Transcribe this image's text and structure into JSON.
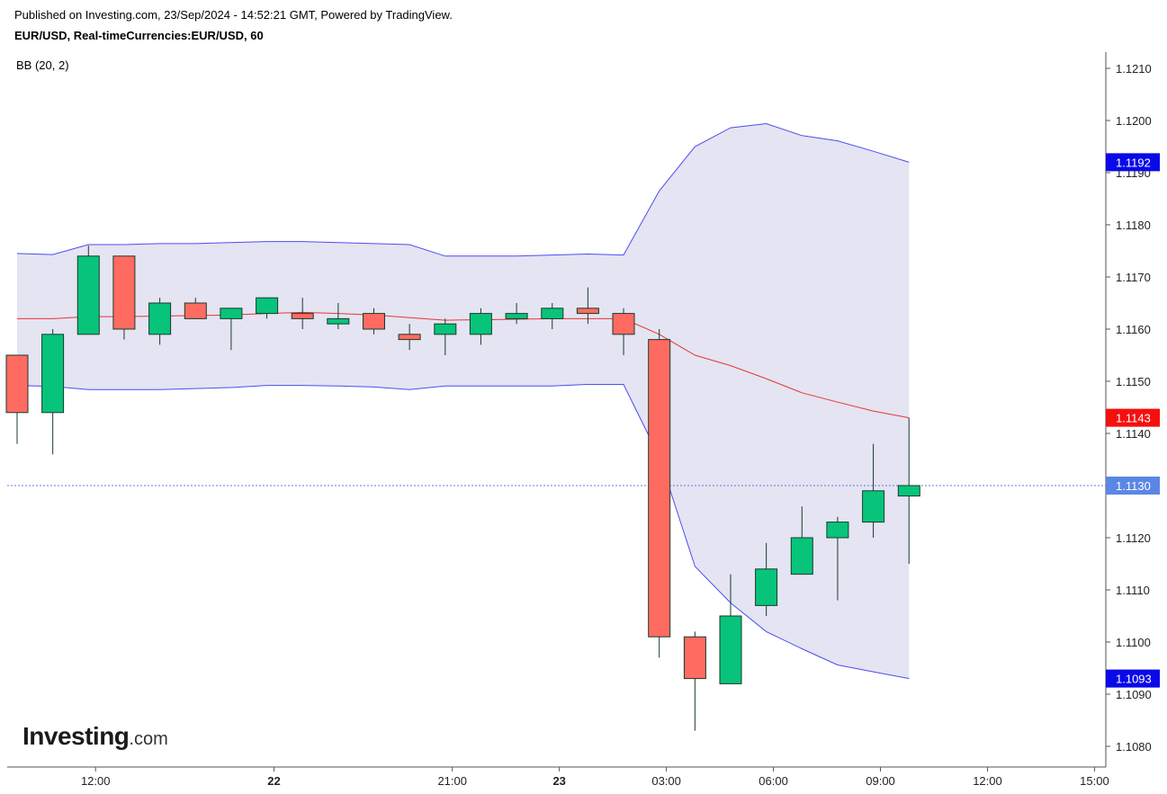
{
  "header": {
    "published": "Published on Investing.com, 23/Sep/2024 - 14:52:21 GMT, Powered by TradingView.",
    "symbol_line": "EUR/USD, Real-timeCurrencies:EUR/USD, 60"
  },
  "indicator": {
    "label": "BB (20, 2)"
  },
  "logo": {
    "word": "Investing",
    "tld": ".com"
  },
  "colors": {
    "up": "#08c47a",
    "down": "#ff6b61",
    "wick": "#1a3a2e",
    "band_line": "#4d4df0",
    "band_fill": "#e4e4f2",
    "basis": "#e83535",
    "last_price_line": "#5a7fe0",
    "tag_blue": "#0a0ae8",
    "tag_red": "#f50f0f",
    "tag_last": "#5b86e5"
  },
  "chart_data": {
    "type": "candlestick",
    "title": "EUR/USD, Real-timeCurrencies:EUR/USD, 60",
    "ylim": [
      1.10735,
      1.12135
    ],
    "y_ticks": [
      1.108,
      1.109,
      1.11,
      1.111,
      1.112,
      1.113,
      1.114,
      1.115,
      1.116,
      1.117,
      1.118,
      1.119,
      1.12,
      1.121
    ],
    "y_tick_labels": [
      "1.1080",
      "1.1090",
      "1.1100",
      "1.1110",
      "1.1120",
      "1.1130",
      "1.1140",
      "1.1150",
      "1.1160",
      "1.1170",
      "1.1180",
      "1.1190",
      "1.1200",
      "1.1210"
    ],
    "x_ticks": [
      {
        "slot": 2.2,
        "label": "12:00",
        "bold": false
      },
      {
        "slot": 7.2,
        "label": "22",
        "bold": true
      },
      {
        "slot": 12.2,
        "label": "21:00",
        "bold": false
      },
      {
        "slot": 15.2,
        "label": "23",
        "bold": true
      },
      {
        "slot": 18.2,
        "label": "03:00",
        "bold": false
      },
      {
        "slot": 21.2,
        "label": "06:00",
        "bold": false
      },
      {
        "slot": 24.2,
        "label": "09:00",
        "bold": false
      },
      {
        "slot": 27.2,
        "label": "12:00",
        "bold": false
      },
      {
        "slot": 30.2,
        "label": "15:00",
        "bold": false
      }
    ],
    "candles": [
      {
        "o": 1.1155,
        "h": 1.1155,
        "l": 1.1138,
        "c": 1.1144
      },
      {
        "o": 1.1144,
        "h": 1.116,
        "l": 1.1136,
        "c": 1.1159
      },
      {
        "o": 1.1159,
        "h": 1.1176,
        "l": 1.1159,
        "c": 1.1174
      },
      {
        "o": 1.1174,
        "h": 1.1174,
        "l": 1.1158,
        "c": 1.116
      },
      {
        "o": 1.1159,
        "h": 1.1166,
        "l": 1.1157,
        "c": 1.1165
      },
      {
        "o": 1.1165,
        "h": 1.1166,
        "l": 1.1162,
        "c": 1.1162
      },
      {
        "o": 1.1162,
        "h": 1.1164,
        "l": 1.1156,
        "c": 1.1164
      },
      {
        "o": 1.1163,
        "h": 1.1166,
        "l": 1.1162,
        "c": 1.1166
      },
      {
        "o": 1.1163,
        "h": 1.1166,
        "l": 1.116,
        "c": 1.1162
      },
      {
        "o": 1.1161,
        "h": 1.1165,
        "l": 1.116,
        "c": 1.1162
      },
      {
        "o": 1.1163,
        "h": 1.1164,
        "l": 1.1159,
        "c": 1.116
      },
      {
        "o": 1.1159,
        "h": 1.1161,
        "l": 1.1156,
        "c": 1.1158
      },
      {
        "o": 1.1159,
        "h": 1.1162,
        "l": 1.1155,
        "c": 1.1161
      },
      {
        "o": 1.1159,
        "h": 1.1164,
        "l": 1.1157,
        "c": 1.1163
      },
      {
        "o": 1.1162,
        "h": 1.1165,
        "l": 1.1161,
        "c": 1.1163
      },
      {
        "o": 1.1162,
        "h": 1.1165,
        "l": 1.116,
        "c": 1.1164
      },
      {
        "o": 1.1164,
        "h": 1.1168,
        "l": 1.1161,
        "c": 1.1163
      },
      {
        "o": 1.1163,
        "h": 1.1164,
        "l": 1.1155,
        "c": 1.1159
      },
      {
        "o": 1.1158,
        "h": 1.116,
        "l": 1.1097,
        "c": 1.1101
      },
      {
        "o": 1.1101,
        "h": 1.1102,
        "l": 1.1083,
        "c": 1.1093
      },
      {
        "o": 1.1092,
        "h": 1.1113,
        "l": 1.1092,
        "c": 1.1105
      },
      {
        "o": 1.1107,
        "h": 1.1119,
        "l": 1.1105,
        "c": 1.1114
      },
      {
        "o": 1.1113,
        "h": 1.1126,
        "l": 1.1113,
        "c": 1.112
      },
      {
        "o": 1.112,
        "h": 1.1124,
        "l": 1.1108,
        "c": 1.1123
      },
      {
        "o": 1.1123,
        "h": 1.1138,
        "l": 1.112,
        "c": 1.1129
      },
      {
        "o": 1.1128,
        "h": 1.1143,
        "l": 1.1115,
        "c": 1.113
      }
    ],
    "bollinger": {
      "period": 20,
      "stddev": 2,
      "upper": [
        {
          "slot": 0,
          "v": 1.11745
        },
        {
          "slot": 1,
          "v": 1.11743
        },
        {
          "slot": 2,
          "v": 1.11762
        },
        {
          "slot": 3,
          "v": 1.11762
        },
        {
          "slot": 4,
          "v": 1.11764
        },
        {
          "slot": 5,
          "v": 1.11764
        },
        {
          "slot": 6,
          "v": 1.11766
        },
        {
          "slot": 7,
          "v": 1.11768
        },
        {
          "slot": 8,
          "v": 1.11768
        },
        {
          "slot": 9,
          "v": 1.11766
        },
        {
          "slot": 10,
          "v": 1.11764
        },
        {
          "slot": 11,
          "v": 1.11762
        },
        {
          "slot": 12,
          "v": 1.1174
        },
        {
          "slot": 13,
          "v": 1.1174
        },
        {
          "slot": 14,
          "v": 1.1174
        },
        {
          "slot": 15,
          "v": 1.11742
        },
        {
          "slot": 16,
          "v": 1.11744
        },
        {
          "slot": 17,
          "v": 1.11742
        },
        {
          "slot": 18,
          "v": 1.11865
        },
        {
          "slot": 19,
          "v": 1.1195
        },
        {
          "slot": 20,
          "v": 1.11986
        },
        {
          "slot": 21,
          "v": 1.11994
        },
        {
          "slot": 22,
          "v": 1.11971
        },
        {
          "slot": 23,
          "v": 1.11961
        },
        {
          "slot": 24,
          "v": 1.11941
        },
        {
          "slot": 25,
          "v": 1.1192
        }
      ],
      "basis": [
        {
          "slot": 0,
          "v": 1.1162
        },
        {
          "slot": 1,
          "v": 1.1162
        },
        {
          "slot": 2,
          "v": 1.11624
        },
        {
          "slot": 3,
          "v": 1.11624
        },
        {
          "slot": 4,
          "v": 1.11625
        },
        {
          "slot": 5,
          "v": 1.11626
        },
        {
          "slot": 6,
          "v": 1.11627
        },
        {
          "slot": 7,
          "v": 1.1163
        },
        {
          "slot": 8,
          "v": 1.11632
        },
        {
          "slot": 9,
          "v": 1.1163
        },
        {
          "slot": 10,
          "v": 1.11627
        },
        {
          "slot": 11,
          "v": 1.11622
        },
        {
          "slot": 12,
          "v": 1.11617
        },
        {
          "slot": 13,
          "v": 1.11618
        },
        {
          "slot": 14,
          "v": 1.11619
        },
        {
          "slot": 15,
          "v": 1.1162
        },
        {
          "slot": 16,
          "v": 1.1162
        },
        {
          "slot": 17,
          "v": 1.1162
        },
        {
          "slot": 18,
          "v": 1.1159
        },
        {
          "slot": 19,
          "v": 1.1155
        },
        {
          "slot": 20,
          "v": 1.1153
        },
        {
          "slot": 21,
          "v": 1.11505
        },
        {
          "slot": 22,
          "v": 1.11478
        },
        {
          "slot": 23,
          "v": 1.1146
        },
        {
          "slot": 24,
          "v": 1.11443
        },
        {
          "slot": 25,
          "v": 1.1143
        }
      ],
      "lower": [
        {
          "slot": 0,
          "v": 1.11492
        },
        {
          "slot": 1,
          "v": 1.1149
        },
        {
          "slot": 2,
          "v": 1.11484
        },
        {
          "slot": 3,
          "v": 1.11484
        },
        {
          "slot": 4,
          "v": 1.11484
        },
        {
          "slot": 5,
          "v": 1.11486
        },
        {
          "slot": 6,
          "v": 1.11488
        },
        {
          "slot": 7,
          "v": 1.11492
        },
        {
          "slot": 8,
          "v": 1.11492
        },
        {
          "slot": 9,
          "v": 1.11491
        },
        {
          "slot": 10,
          "v": 1.11489
        },
        {
          "slot": 11,
          "v": 1.11484
        },
        {
          "slot": 12,
          "v": 1.11491
        },
        {
          "slot": 13,
          "v": 1.11491
        },
        {
          "slot": 14,
          "v": 1.11491
        },
        {
          "slot": 15,
          "v": 1.11491
        },
        {
          "slot": 16,
          "v": 1.11494
        },
        {
          "slot": 17,
          "v": 1.11494
        },
        {
          "slot": 18,
          "v": 1.11355
        },
        {
          "slot": 19,
          "v": 1.11145
        },
        {
          "slot": 20,
          "v": 1.11075
        },
        {
          "slot": 21,
          "v": 1.1102
        },
        {
          "slot": 22,
          "v": 1.10987
        },
        {
          "slot": 23,
          "v": 1.10956
        },
        {
          "slot": 24,
          "v": 1.10943
        },
        {
          "slot": 25,
          "v": 1.1093
        }
      ]
    },
    "last_price": 1.113,
    "price_tags": [
      {
        "label": "1.1192",
        "value": 1.1192,
        "kind": "upper"
      },
      {
        "label": "1.1143",
        "value": 1.1143,
        "kind": "basis"
      },
      {
        "label": "1.1130",
        "value": 1.113,
        "kind": "last"
      },
      {
        "label": "1.1093",
        "value": 1.1093,
        "kind": "lower"
      }
    ]
  }
}
